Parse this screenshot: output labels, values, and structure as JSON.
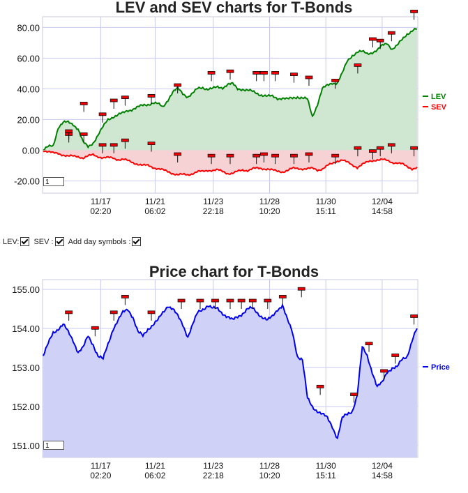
{
  "controls": {
    "lev_label": "LEV:",
    "sev_label": "SEV :",
    "day_symbols_label": "Add day symbols :",
    "lev_checked": true,
    "sev_checked": true,
    "day_symbols_checked": true
  },
  "colors": {
    "lev": "#008000",
    "lev_fill": "#cfe6d0",
    "sev": "#ff0000",
    "sev_fill": "#f6d2d4",
    "price": "#0000ee",
    "price_fill": "#cfd2f6",
    "grid": "#c8c8f0",
    "marker": "#ee0000"
  },
  "x_tick_labels": [
    {
      "date": "11/17",
      "time": "02:20"
    },
    {
      "date": "11/21",
      "time": "06:02"
    },
    {
      "date": "11/23",
      "time": "22:18"
    },
    {
      "date": "11/28",
      "time": "10:20"
    },
    {
      "date": "11/30",
      "time": "15:11"
    },
    {
      "date": "12/04",
      "time": "14:58"
    }
  ],
  "chart_data": [
    {
      "type": "line",
      "title": "LEV and SEV charts for T-Bonds",
      "zoom_value": "1",
      "ylim": [
        -28,
        87
      ],
      "yticks": [
        "80.00",
        "60.00",
        "40.00",
        "20.00",
        "0.00",
        "-20.00"
      ],
      "ytick_values": [
        80,
        60,
        40,
        20,
        0,
        -20
      ],
      "legend_position": "right",
      "series": [
        {
          "name": "LEV",
          "values": [
            0,
            2,
            3,
            15,
            18,
            18,
            17,
            14,
            5,
            2,
            5,
            10,
            15,
            20,
            22,
            23,
            24,
            26,
            27,
            28,
            29,
            30,
            31,
            30,
            28,
            33,
            38,
            40,
            37,
            35,
            37,
            40,
            41,
            40,
            40,
            41,
            41,
            43,
            43,
            40,
            40,
            39,
            38,
            37,
            36,
            35,
            35,
            34,
            34,
            33,
            34,
            35,
            34,
            33,
            22,
            30,
            40,
            42,
            44,
            44,
            50,
            58,
            62,
            64,
            64,
            63,
            64,
            65,
            68,
            70,
            66,
            68,
            72,
            76,
            78,
            79
          ]
        },
        {
          "name": "SEV",
          "values": [
            0,
            -1,
            -2,
            -2,
            -3,
            -4,
            -4,
            -4,
            -5,
            -4,
            -3,
            -4,
            -5,
            -5,
            -5,
            -6,
            -6,
            -7,
            -8,
            -9,
            -10,
            -10,
            -11,
            -12,
            -13,
            -14,
            -15,
            -16,
            -16,
            -16,
            -15,
            -14,
            -14,
            -13,
            -13,
            -13,
            -14,
            -15,
            -15,
            -14,
            -13,
            -13,
            -12,
            -12,
            -12,
            -12,
            -13,
            -14,
            -14,
            -13,
            -12,
            -12,
            -12,
            -12,
            -12,
            -13,
            -12,
            -10,
            -9,
            -7,
            -6,
            -8,
            -10,
            -11,
            -9,
            -8,
            -7,
            -6,
            -6,
            -7,
            -8,
            -8,
            -9,
            -11,
            -12,
            -11
          ]
        }
      ],
      "marker_positions": [
        0.07,
        0.11,
        0.16,
        0.19,
        0.22,
        0.29,
        0.36,
        0.45,
        0.5,
        0.57,
        0.59,
        0.62,
        0.67,
        0.71,
        0.78,
        0.84,
        0.88,
        0.9,
        0.93,
        0.99
      ],
      "lev_marker_values": [
        5,
        25,
        18,
        27,
        29,
        30,
        37,
        45,
        46,
        45,
        45,
        45,
        44,
        42,
        40,
        50,
        67,
        66,
        71,
        85
      ],
      "sev_marker_values": [
        7,
        5,
        -2,
        -2,
        1,
        -1,
        -8,
        -9,
        -9,
        -9,
        -8,
        -9,
        -9,
        -8,
        -9,
        -4,
        -6,
        -4,
        -2,
        -4
      ]
    },
    {
      "type": "area",
      "title": "Price chart for T-Bonds",
      "zoom_value": "1",
      "ylim": [
        150.7,
        155.25
      ],
      "yticks": [
        "155.00",
        "154.00",
        "153.00",
        "152.00",
        "151.00"
      ],
      "ytick_values": [
        155,
        154,
        153,
        152,
        151
      ],
      "legend_position": "right",
      "series": [
        {
          "name": "Price",
          "values": [
            153.3,
            153.6,
            153.9,
            154.0,
            154.1,
            153.9,
            153.7,
            153.4,
            153.5,
            153.8,
            153.6,
            153.3,
            153.2,
            153.6,
            154.0,
            154.2,
            154.4,
            154.5,
            154.3,
            153.9,
            153.8,
            154.0,
            154.1,
            154.2,
            154.4,
            154.6,
            154.5,
            154.3,
            154.1,
            153.8,
            154.1,
            154.4,
            154.5,
            154.6,
            154.5,
            154.5,
            154.4,
            154.3,
            154.2,
            154.3,
            154.4,
            154.5,
            154.5,
            154.4,
            154.3,
            154.2,
            154.3,
            154.5,
            154.6,
            154.2,
            153.9,
            153.3,
            153.2,
            152.2,
            152.0,
            151.9,
            151.8,
            151.7,
            151.5,
            151.2,
            151.7,
            151.8,
            151.9,
            152.3,
            153.5,
            153.3,
            152.9,
            152.5,
            152.6,
            152.9,
            153.0,
            153.0,
            153.2,
            153.3,
            153.7,
            154.0
          ]
        }
      ],
      "marker_positions": [
        0.07,
        0.14,
        0.19,
        0.22,
        0.29,
        0.37,
        0.42,
        0.46,
        0.5,
        0.53,
        0.56,
        0.6,
        0.64,
        0.69,
        0.74,
        0.83,
        0.87,
        0.91,
        0.94,
        0.99
      ],
      "marker_values": [
        154.2,
        153.8,
        154.2,
        154.6,
        154.2,
        154.5,
        154.5,
        154.5,
        154.5,
        154.5,
        154.5,
        154.5,
        154.6,
        154.8,
        152.3,
        152.1,
        153.4,
        152.7,
        153.1,
        154.1
      ]
    }
  ]
}
